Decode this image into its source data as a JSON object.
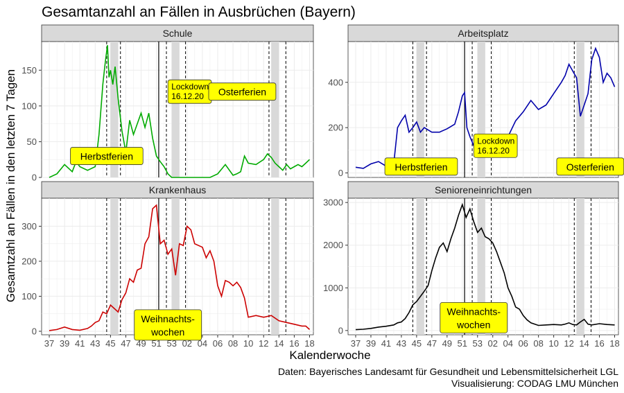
{
  "title": "Gesamtanzahl an Fällen in Ausbrüchen (Bayern)",
  "xlabel": "Kalenderwoche",
  "ylabel": "Gesamtzahl an Fällen in den letzten 7 Tagen",
  "caption": [
    "Daten: Bayerisches Landesamt für Gesundheit und Lebensmittelsicherheit LGL",
    "Visualisierung: CODAG LMU München"
  ],
  "x_tick_labels": [
    "37",
    "39",
    "41",
    "43",
    "45",
    "47",
    "49",
    "51",
    "53",
    "02",
    "04",
    "06",
    "08",
    "10",
    "12",
    "14",
    "16",
    "18"
  ],
  "colors": {
    "strip_bg": "#d9d9d9",
    "grid": "#ebebeb",
    "shade": "#d9d9d9",
    "annotation_bg": "#ffff00"
  },
  "chart_data": [
    {
      "type": "line",
      "panel": "Schule",
      "color": "#00aa00",
      "ylim": [
        0,
        190
      ],
      "yticks": [
        0,
        50,
        100,
        150
      ],
      "x": [
        37,
        38,
        39,
        40,
        40.5,
        41,
        42,
        43,
        43.5,
        44,
        44.3,
        44.6,
        44.8,
        45,
        45.3,
        45.6,
        46,
        46.5,
        47,
        47.5,
        48,
        48.5,
        49,
        49.5,
        50,
        50.5,
        51,
        51.5,
        52,
        52.5,
        53,
        54,
        55,
        56,
        57,
        58,
        59,
        60,
        61,
        61.5,
        62,
        62.5,
        63,
        64,
        65,
        65.5,
        66,
        66.5,
        67,
        67.5,
        68,
        68.5,
        69,
        69.5,
        70,
        70.5,
        71
      ],
      "values": [
        0,
        5,
        18,
        8,
        22,
        15,
        10,
        15,
        60,
        130,
        160,
        185,
        140,
        150,
        130,
        155,
        110,
        65,
        35,
        80,
        60,
        75,
        90,
        70,
        90,
        55,
        30,
        22,
        15,
        5,
        0,
        0,
        0,
        0,
        0,
        0,
        5,
        18,
        3,
        5,
        8,
        30,
        20,
        18,
        25,
        33,
        28,
        20,
        15,
        10,
        18,
        12,
        15,
        18,
        15,
        20,
        25
      ]
    },
    {
      "type": "line",
      "panel": "Arbeitsplatz",
      "color": "#0000aa",
      "ylim": [
        -20,
        580
      ],
      "yticks": [
        0,
        200,
        400
      ],
      "x": [
        37,
        38,
        39,
        40,
        41,
        42,
        42.5,
        43,
        43.5,
        44,
        44.5,
        45,
        45.5,
        46,
        47,
        48,
        49,
        50,
        50.5,
        51,
        51.3,
        51.6,
        52,
        52.5,
        53,
        54,
        55,
        56,
        57,
        58,
        59,
        60,
        61,
        62,
        63,
        64,
        64.5,
        65,
        65.5,
        66,
        66.5,
        67,
        67.5,
        68,
        68.5,
        69,
        69.5,
        70,
        70.5,
        71
      ],
      "values": [
        25,
        20,
        40,
        50,
        30,
        40,
        200,
        230,
        255,
        180,
        200,
        225,
        180,
        200,
        180,
        180,
        195,
        215,
        270,
        340,
        355,
        200,
        160,
        120,
        100,
        90,
        80,
        120,
        160,
        230,
        270,
        320,
        280,
        300,
        350,
        400,
        430,
        480,
        450,
        420,
        250,
        300,
        350,
        500,
        550,
        510,
        400,
        440,
        420,
        380
      ]
    },
    {
      "type": "line",
      "panel": "Krankenhaus",
      "color": "#cc0000",
      "ylim": [
        -10,
        380
      ],
      "yticks": [
        0,
        100,
        200,
        300
      ],
      "x": [
        37,
        38,
        39,
        40,
        41,
        42,
        42.5,
        43,
        43.5,
        44,
        44.5,
        45,
        45.5,
        46,
        46.5,
        47,
        47.5,
        48,
        48.5,
        49,
        49.5,
        50,
        50.5,
        51,
        51.5,
        52,
        52.5,
        53,
        53.5,
        54,
        54.5,
        55,
        55.5,
        56,
        57,
        57.5,
        58,
        58.5,
        59,
        59.5,
        60,
        60.5,
        61,
        61.5,
        62,
        62.5,
        63,
        64,
        65,
        66,
        67,
        68,
        69,
        70,
        70.5,
        71
      ],
      "values": [
        2,
        5,
        12,
        5,
        3,
        8,
        15,
        25,
        30,
        55,
        50,
        75,
        65,
        55,
        90,
        110,
        150,
        140,
        175,
        180,
        250,
        270,
        350,
        360,
        250,
        260,
        220,
        235,
        160,
        250,
        245,
        300,
        290,
        250,
        240,
        210,
        230,
        200,
        130,
        100,
        145,
        140,
        130,
        140,
        125,
        95,
        40,
        45,
        40,
        45,
        30,
        25,
        20,
        15,
        15,
        5
      ]
    },
    {
      "type": "line",
      "panel": "Senioreneinrichtungen",
      "color": "#000000",
      "ylim": [
        -100,
        3100
      ],
      "yticks": [
        0,
        1000,
        2000,
        3000
      ],
      "x": [
        37,
        38,
        39,
        40,
        41,
        42,
        42.5,
        43,
        43.5,
        44,
        44.5,
        45,
        45.5,
        46,
        46.5,
        47,
        47.5,
        48,
        48.5,
        49,
        49.5,
        50,
        50.5,
        51,
        51.5,
        52,
        52.5,
        53,
        53.5,
        54,
        54.5,
        55,
        55.5,
        56,
        56.5,
        57,
        57.5,
        58,
        58.5,
        59,
        59.5,
        60,
        61,
        62,
        63,
        64,
        64.5,
        65,
        65.5,
        66,
        66.5,
        67,
        67.5,
        68,
        69,
        70,
        71
      ],
      "values": [
        20,
        30,
        50,
        80,
        100,
        130,
        180,
        200,
        280,
        420,
        600,
        680,
        800,
        920,
        1050,
        1400,
        1700,
        1950,
        2050,
        1850,
        2150,
        2400,
        2700,
        2950,
        2650,
        2850,
        2550,
        2300,
        2400,
        2200,
        2150,
        2050,
        1850,
        1600,
        1350,
        1000,
        800,
        550,
        500,
        350,
        250,
        180,
        120,
        130,
        140,
        130,
        150,
        180,
        140,
        130,
        200,
        260,
        150,
        130,
        160,
        140,
        130
      ]
    }
  ],
  "panels": [
    {
      "name": "Schule",
      "annotations": [
        {
          "lines": [
            "Lockdown",
            "16.12.20"
          ],
          "small": true
        },
        {
          "lines": [
            "Osterferien"
          ]
        },
        {
          "lines": [
            "Herbstferien"
          ]
        }
      ]
    },
    {
      "name": "Arbeitsplatz",
      "annotations": [
        {
          "lines": [
            "Lockdown",
            "16.12.20"
          ],
          "small": true
        },
        {
          "lines": [
            "Herbstferien"
          ]
        },
        {
          "lines": [
            "Osterferien"
          ]
        }
      ]
    },
    {
      "name": "Krankenhaus",
      "annotations": [
        {
          "lines": [
            "Weihnachts-",
            "wochen"
          ]
        }
      ]
    },
    {
      "name": "Senioreneinrichtungen",
      "annotations": [
        {
          "lines": [
            "Weihnachts-",
            "wochen"
          ]
        }
      ]
    }
  ]
}
